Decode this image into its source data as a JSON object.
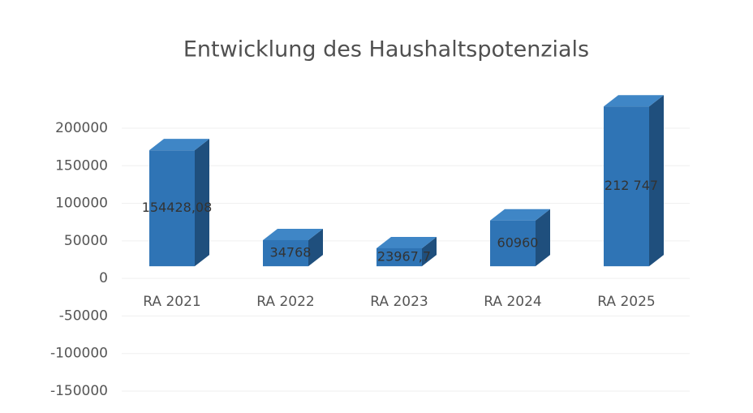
{
  "chart_data": {
    "type": "bar3d",
    "title": "Entwicklung des Haushaltspotenzials",
    "categories": [
      "RA 2021",
      "RA 2022",
      "RA 2023",
      "RA 2024",
      "RA 2025"
    ],
    "values": [
      154428.08,
      34768,
      23967.7,
      60960,
      212747
    ],
    "value_labels": [
      "154428,08",
      "34768",
      "23967,7",
      "60960",
      "212 747"
    ],
    "color": "#2f74b5",
    "ylim": [
      -150000,
      200000
    ],
    "yticks": [
      -150000,
      -100000,
      -50000,
      0,
      50000,
      100000,
      150000,
      200000
    ],
    "grid": true
  }
}
